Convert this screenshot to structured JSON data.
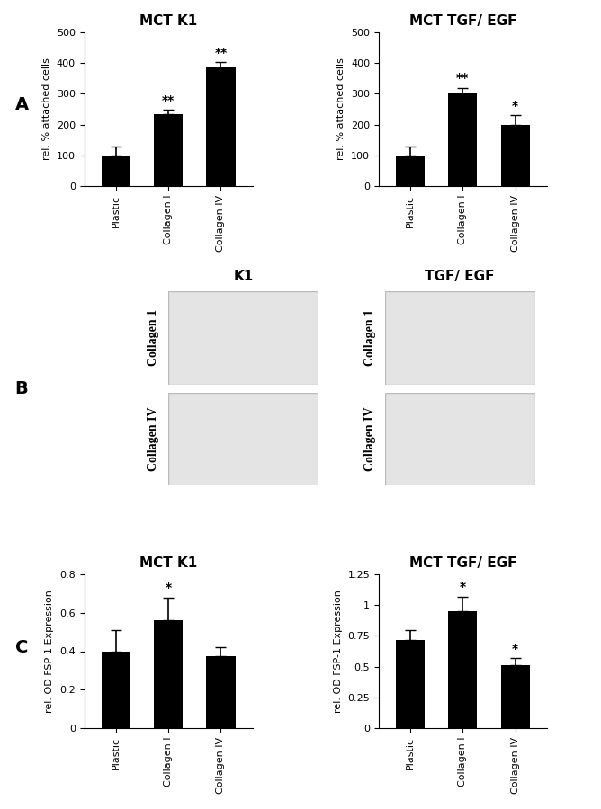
{
  "panel_labels": [
    "A",
    "B",
    "C"
  ],
  "chart_data": [
    {
      "type": "bar",
      "title": "MCT K1",
      "y_label": "rel. % attached cells",
      "categories": [
        "Plastic",
        "Collagen I",
        "Collagen IV"
      ],
      "values": [
        100,
        233,
        385
      ],
      "errors": [
        30,
        15,
        18
      ],
      "significance": [
        null,
        "**",
        "**"
      ],
      "color": "#000000",
      "ylim": [
        0,
        500
      ],
      "yticks": [
        0,
        100,
        200,
        300,
        400,
        500
      ]
    },
    {
      "type": "bar",
      "title": "MCT TGF/ EGF",
      "y_label": "rel. % attached cells",
      "categories": [
        "Plastic",
        "Collagen I",
        "Collagen IV"
      ],
      "values": [
        100,
        300,
        200
      ],
      "errors": [
        30,
        20,
        30
      ],
      "significance": [
        null,
        "**",
        "*"
      ],
      "color": "#000000",
      "ylim": [
        0,
        500
      ],
      "yticks": [
        0,
        100,
        200,
        300,
        400,
        500
      ]
    },
    {
      "type": "bar",
      "title": "MCT K1",
      "y_label": "rel. OD FSP-1 Expression",
      "categories": [
        "Plastic",
        "Collagen I",
        "Collagen IV"
      ],
      "values": [
        0.4,
        0.56,
        0.375
      ],
      "errors": [
        0.11,
        0.12,
        0.045
      ],
      "significance": [
        null,
        "*",
        null
      ],
      "color": "#000000",
      "ylim": [
        0,
        0.8
      ],
      "yticks": [
        0,
        0.2,
        0.4,
        0.6,
        0.8
      ]
    },
    {
      "type": "bar",
      "title": "MCT TGF/ EGF",
      "y_label": "rel. OD FSP-1 Expression",
      "categories": [
        "Plastic",
        "Collagen I",
        "Collagen IV"
      ],
      "values": [
        0.72,
        0.95,
        0.51
      ],
      "errors": [
        0.08,
        0.12,
        0.06
      ],
      "significance": [
        null,
        "*",
        "*"
      ],
      "color": "#000000",
      "ylim": [
        0,
        1.25
      ],
      "yticks": [
        0,
        0.25,
        0.5,
        0.75,
        1,
        1.25
      ]
    }
  ],
  "images": {
    "columns": [
      "K1",
      "TGF/ EGF"
    ],
    "rows": [
      "Collagen 1",
      "Collagen IV"
    ]
  }
}
